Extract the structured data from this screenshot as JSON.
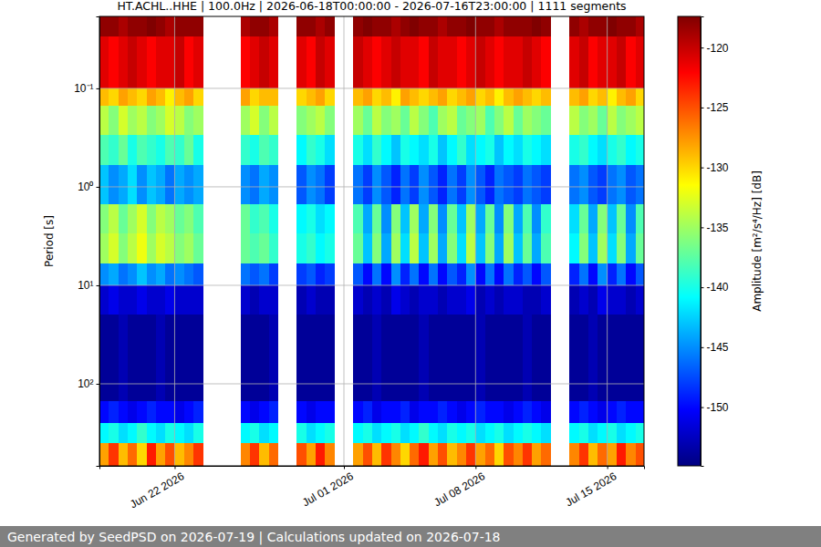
{
  "chart_data": {
    "type": "heatmap",
    "title": "HT.ACHL..HHE | 100.0Hz | 2026-06-18T00:00:00 - 2026-07-16T23:00:00 | 1111 segments",
    "y_label": "Period [s]",
    "footer": "Generated by SeedPSD on 2026-07-19 | Calculations updated on 2026-07-18",
    "log": "y",
    "grid": true,
    "color": "jet",
    "xlim": [
      "2026-06-18T00:00:00",
      "2026-07-16T23:00:00"
    ],
    "xticks": [
      {
        "value": "2026-06-22",
        "label": "Jun 22 2026"
      },
      {
        "value": "2026-07-01",
        "label": "Jul 01 2026"
      },
      {
        "value": "2026-07-08",
        "label": "Jul 08 2026"
      },
      {
        "value": "2026-07-15",
        "label": "Jul 15 2026"
      }
    ],
    "ylim": [
      0.0186,
      681
    ],
    "yticks": [
      {
        "value": 0.1,
        "label": "10⁻¹"
      },
      {
        "value": 1,
        "label": "10⁰"
      },
      {
        "value": 10,
        "label": "10¹"
      },
      {
        "value": 100,
        "label": "10²"
      }
    ],
    "x_edges": [
      "2026-06-18T00:00",
      "2026-06-18T12:00",
      "2026-06-19T00:00",
      "2026-06-19T12:00",
      "2026-06-20T00:00",
      "2026-06-20T12:00",
      "2026-06-21T00:00",
      "2026-06-21T12:00",
      "2026-06-22T00:00",
      "2026-06-22T12:00",
      "2026-06-23T00:00",
      "2026-06-23T12:00",
      "2026-06-24T00:00",
      "2026-06-24T12:00",
      "2026-06-25T00:00",
      "2026-06-25T12:00",
      "2026-06-26T00:00",
      "2026-06-26T12:00",
      "2026-06-27T00:00",
      "2026-06-27T12:00",
      "2026-06-28T00:00",
      "2026-06-28T12:00",
      "2026-06-29T00:00",
      "2026-06-29T12:00",
      "2026-06-30T00:00",
      "2026-06-30T12:00",
      "2026-07-01T00:00",
      "2026-07-01T12:00",
      "2026-07-02T00:00",
      "2026-07-02T12:00",
      "2026-07-03T00:00",
      "2026-07-03T12:00",
      "2026-07-04T00:00",
      "2026-07-04T12:00",
      "2026-07-05T00:00",
      "2026-07-05T12:00",
      "2026-07-06T00:00",
      "2026-07-06T12:00",
      "2026-07-07T00:00",
      "2026-07-07T12:00",
      "2026-07-08T00:00",
      "2026-07-08T12:00",
      "2026-07-09T00:00",
      "2026-07-09T12:00",
      "2026-07-10T00:00",
      "2026-07-10T12:00",
      "2026-07-11T00:00",
      "2026-07-11T12:00",
      "2026-07-12T00:00",
      "2026-07-12T12:00",
      "2026-07-13T00:00",
      "2026-07-13T12:00",
      "2026-07-14T00:00",
      "2026-07-14T12:00",
      "2026-07-15T00:00",
      "2026-07-15T12:00",
      "2026-07-16T00:00",
      "2026-07-16T12:00",
      "2026-07-17T00:00"
    ],
    "y_edges": [
      0.0186,
      0.03,
      0.1,
      0.15,
      0.3,
      0.6,
      1.5,
      3,
      6,
      10,
      20,
      150,
      250,
      400,
      681
    ],
    "z": [
      [
        -118,
        -118,
        -119,
        -118,
        -118,
        -117,
        -118,
        -119,
        -118,
        -118,
        -118,
        null,
        null,
        null,
        null,
        -119,
        -118,
        -118,
        -119,
        null,
        null,
        -118,
        -118,
        -119,
        -118,
        null,
        null,
        -118,
        -117,
        -118,
        -118,
        -119,
        -118,
        -117,
        -118,
        -118,
        -119,
        -118,
        -118,
        -117,
        -118,
        -118,
        -119,
        -118,
        -118,
        -118,
        -117,
        -118,
        null,
        null,
        -118,
        -119,
        -118,
        -118,
        -117,
        -118,
        -118,
        -119
      ],
      [
        -121,
        -122,
        -121,
        -120,
        -121,
        -122,
        -121,
        -121,
        -120,
        -122,
        -121,
        null,
        null,
        null,
        null,
        -122,
        -121,
        -120,
        -121,
        null,
        null,
        -121,
        -122,
        -120,
        -121,
        null,
        null,
        -120,
        -121,
        -122,
        -121,
        -120,
        -121,
        -121,
        -122,
        -120,
        -121,
        -121,
        -122,
        -121,
        -120,
        -121,
        -122,
        -121,
        -121,
        -120,
        -121,
        -122,
        null,
        null,
        -121,
        -120,
        -122,
        -121,
        -121,
        -120,
        -122,
        -121
      ],
      [
        -129,
        -130,
        -128,
        -129,
        -130,
        -128,
        -129,
        -131,
        -129,
        -128,
        -130,
        null,
        null,
        null,
        null,
        -128,
        -130,
        -129,
        -129,
        null,
        null,
        -130,
        -129,
        -128,
        -130,
        null,
        null,
        -129,
        -128,
        -130,
        -129,
        -131,
        -128,
        -129,
        -130,
        -129,
        -128,
        -130,
        -129,
        -128,
        -130,
        -129,
        -131,
        -129,
        -128,
        -129,
        -130,
        -129,
        null,
        null,
        -129,
        -128,
        -130,
        -129,
        -131,
        -129,
        -128,
        -130
      ],
      [
        -134,
        -136,
        -133,
        -135,
        -134,
        -136,
        -135,
        -133,
        -134,
        -136,
        -135,
        null,
        null,
        null,
        null,
        -135,
        -133,
        -136,
        -134,
        null,
        null,
        -136,
        -135,
        -134,
        -136,
        null,
        null,
        -135,
        -137,
        -134,
        -136,
        -135,
        -137,
        -134,
        -136,
        -138,
        -135,
        -134,
        -137,
        -136,
        -135,
        -138,
        -136,
        -134,
        -137,
        -135,
        -136,
        -137,
        null,
        null,
        -134,
        -136,
        -135,
        -137,
        -134,
        -136,
        -135,
        -134
      ],
      [
        -138,
        -139,
        -137,
        -140,
        -138,
        -139,
        -140,
        -138,
        -139,
        -137,
        -140,
        null,
        null,
        null,
        null,
        -139,
        -140,
        -138,
        -139,
        null,
        null,
        -141,
        -139,
        -140,
        -142,
        null,
        null,
        -140,
        -142,
        -139,
        -141,
        -143,
        -140,
        -141,
        -142,
        -140,
        -143,
        -141,
        -139,
        -142,
        -141,
        -140,
        -143,
        -141,
        -142,
        -140,
        -141,
        -142,
        null,
        null,
        -140,
        -139,
        -141,
        -142,
        -140,
        -139,
        -141,
        -140
      ],
      [
        -143,
        -145,
        -144,
        -142,
        -145,
        -143,
        -144,
        -146,
        -144,
        -145,
        -144,
        null,
        null,
        null,
        null,
        -145,
        -146,
        -144,
        -145,
        null,
        null,
        -147,
        -145,
        -146,
        -148,
        null,
        null,
        -146,
        -148,
        -145,
        -147,
        -149,
        -146,
        -148,
        -145,
        -147,
        -149,
        -146,
        -148,
        -145,
        -147,
        -149,
        -146,
        -147,
        -148,
        -146,
        -147,
        -148,
        null,
        null,
        -146,
        -145,
        -147,
        -148,
        -146,
        -145,
        -147,
        -146
      ],
      [
        -136,
        -134,
        -137,
        -135,
        -133,
        -136,
        -134,
        -135,
        -137,
        -136,
        -138,
        null,
        null,
        null,
        null,
        -137,
        -139,
        -138,
        -140,
        null,
        null,
        -141,
        -140,
        -142,
        -141,
        null,
        null,
        -138,
        -144,
        -137,
        -145,
        -136,
        -143,
        -135,
        -144,
        -136,
        -145,
        -137,
        -143,
        -135,
        -144,
        -137,
        -145,
        -136,
        -144,
        -138,
        -145,
        -139,
        null,
        null,
        -142,
        -137,
        -144,
        -136,
        -143,
        -137,
        -145,
        -138
      ],
      [
        -135,
        -133,
        -136,
        -134,
        -132,
        -135,
        -133,
        -134,
        -136,
        -135,
        -137,
        null,
        null,
        null,
        null,
        -137,
        -138,
        -137,
        -139,
        null,
        null,
        -140,
        -139,
        -141,
        -140,
        null,
        null,
        -137,
        -143,
        -136,
        -144,
        -135,
        -142,
        -134,
        -143,
        -135,
        -144,
        -136,
        -142,
        -134,
        -143,
        -136,
        -144,
        -135,
        -143,
        -137,
        -144,
        -138,
        null,
        null,
        -141,
        -136,
        -143,
        -135,
        -142,
        -136,
        -144,
        -137
      ],
      [
        -145,
        -144,
        -146,
        -145,
        -143,
        -145,
        -144,
        -146,
        -145,
        -146,
        -147,
        null,
        null,
        null,
        null,
        -146,
        -147,
        -146,
        -148,
        null,
        null,
        -148,
        -147,
        -149,
        -148,
        null,
        null,
        -147,
        -150,
        -146,
        -150,
        -145,
        -149,
        -146,
        -150,
        -146,
        -150,
        -147,
        -149,
        -145,
        -150,
        -146,
        -150,
        -146,
        -149,
        -147,
        -150,
        -147,
        null,
        null,
        -149,
        -146,
        -150,
        -145,
        -149,
        -146,
        -150,
        -147
      ],
      [
        -152,
        -151,
        -152,
        -152,
        -151,
        -152,
        -152,
        -151,
        -152,
        -152,
        -152,
        null,
        null,
        null,
        null,
        -152,
        -153,
        -152,
        -152,
        null,
        null,
        -153,
        -152,
        -153,
        -153,
        null,
        null,
        -152,
        -153,
        -152,
        -153,
        -151,
        -152,
        -153,
        -152,
        -152,
        -153,
        -152,
        -152,
        -151,
        -153,
        -152,
        -153,
        -152,
        -152,
        -153,
        -153,
        -152,
        null,
        null,
        -153,
        -152,
        -153,
        -151,
        -152,
        -152,
        -153,
        -152
      ],
      [
        -154,
        -154,
        -153,
        -154,
        -154,
        -154,
        -153,
        -154,
        -154,
        -154,
        -154,
        null,
        null,
        null,
        null,
        -154,
        -154,
        -154,
        -153,
        null,
        null,
        -154,
        -154,
        -154,
        -154,
        null,
        null,
        -154,
        -154,
        -153,
        -154,
        -154,
        -154,
        -154,
        -153,
        -154,
        -154,
        -154,
        -154,
        -154,
        -153,
        -154,
        -154,
        -154,
        -154,
        -153,
        -154,
        -154,
        null,
        null,
        -154,
        -154,
        -153,
        -154,
        -154,
        -154,
        -154,
        -154
      ],
      [
        -150,
        -149,
        -150,
        -151,
        -150,
        -149,
        -150,
        -150,
        -151,
        -150,
        -149,
        null,
        null,
        null,
        null,
        -150,
        -151,
        -150,
        -149,
        null,
        null,
        -150,
        -151,
        -150,
        -150,
        null,
        null,
        -150,
        -149,
        -151,
        -150,
        -150,
        -149,
        -151,
        -150,
        -150,
        -149,
        -150,
        -151,
        -150,
        -149,
        -150,
        -150,
        -151,
        -150,
        -149,
        -150,
        -151,
        null,
        null,
        -150,
        -149,
        -150,
        -151,
        -150,
        -149,
        -150,
        -150
      ],
      [
        -141,
        -140,
        -142,
        -141,
        -139,
        -141,
        -142,
        -140,
        -141,
        -142,
        -140,
        null,
        null,
        null,
        null,
        -141,
        -140,
        -142,
        -141,
        null,
        null,
        -140,
        -142,
        -141,
        -140,
        null,
        null,
        -141,
        -140,
        -142,
        -141,
        -140,
        -142,
        -141,
        -139,
        -141,
        -142,
        -140,
        -141,
        -140,
        -142,
        -141,
        -140,
        -142,
        -141,
        -140,
        -141,
        -142,
        null,
        null,
        -141,
        -140,
        -142,
        -141,
        -140,
        -142,
        -141,
        -140
      ],
      [
        -128,
        -124,
        -129,
        -126,
        -130,
        -123,
        -128,
        -125,
        -129,
        -127,
        -124,
        null,
        null,
        null,
        null,
        -127,
        -124,
        -129,
        -126,
        null,
        null,
        -125,
        -128,
        -123,
        -127,
        null,
        null,
        -128,
        -125,
        -129,
        -124,
        -127,
        -130,
        -126,
        -123,
        -128,
        -125,
        -129,
        -127,
        -124,
        -128,
        -126,
        -130,
        -125,
        -127,
        -124,
        -128,
        -126,
        null,
        null,
        -127,
        -124,
        -129,
        -126,
        -128,
        -123,
        -127,
        -125
      ]
    ],
    "colorbar": {
      "label": "Amplitude [m²/s⁴/Hz] [dB]",
      "lim": [
        -154.9,
        -117.4
      ],
      "ticks": [
        -150,
        -145,
        -140,
        -135,
        -130,
        -125,
        -120
      ]
    }
  }
}
